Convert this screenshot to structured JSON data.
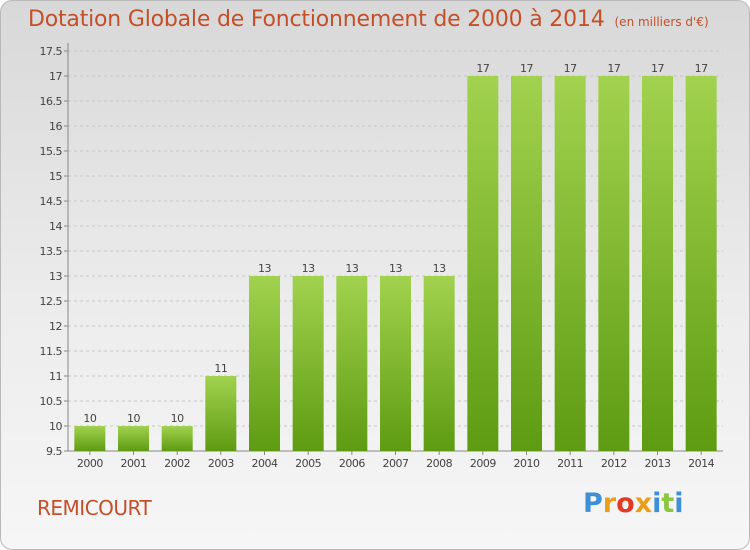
{
  "header": {
    "title": "Dotation Globale de Fonctionnement de 2000 à 2014",
    "unit": "(en milliers d'€)"
  },
  "footer": {
    "commune": "REMICOURT",
    "logo_letters": [
      {
        "char": "P",
        "color": "#3d8fd6"
      },
      {
        "char": "r",
        "color": "#e8a01c"
      },
      {
        "char": "o",
        "color": "#e23a24"
      },
      {
        "char": "x",
        "color": "#e8a01c"
      },
      {
        "char": "i",
        "color": "#3d8fd6"
      },
      {
        "char": "t",
        "color": "#8dc63f"
      },
      {
        "char": "i",
        "color": "#3d8fd6"
      }
    ]
  },
  "colors": {
    "bar_light": "#a2d24f",
    "bar_dark": "#5e9b12",
    "title": "#c4502a",
    "axis_text": "#444444",
    "grid": "#c8c8c8"
  },
  "chart_data": {
    "type": "bar",
    "categories": [
      "2000",
      "2001",
      "2002",
      "2003",
      "2004",
      "2005",
      "2006",
      "2007",
      "2008",
      "2009",
      "2010",
      "2011",
      "2012",
      "2013",
      "2014"
    ],
    "values": [
      10,
      10,
      10,
      11,
      13,
      13,
      13,
      13,
      13,
      17,
      17,
      17,
      17,
      17,
      17
    ],
    "data_labels": [
      "10",
      "10",
      "10",
      "11",
      "13",
      "13",
      "13",
      "13",
      "13",
      "17",
      "17",
      "17",
      "17",
      "17",
      "17"
    ],
    "yticks": [
      "9.5",
      "10",
      "10.5",
      "11",
      "11.5",
      "12",
      "12.5",
      "13",
      "13.5",
      "14",
      "14.5",
      "15",
      "15.5",
      "16",
      "16.5",
      "17",
      "17.5"
    ],
    "ylim": [
      9.5,
      17.5
    ],
    "grid": true,
    "legend": "none"
  }
}
